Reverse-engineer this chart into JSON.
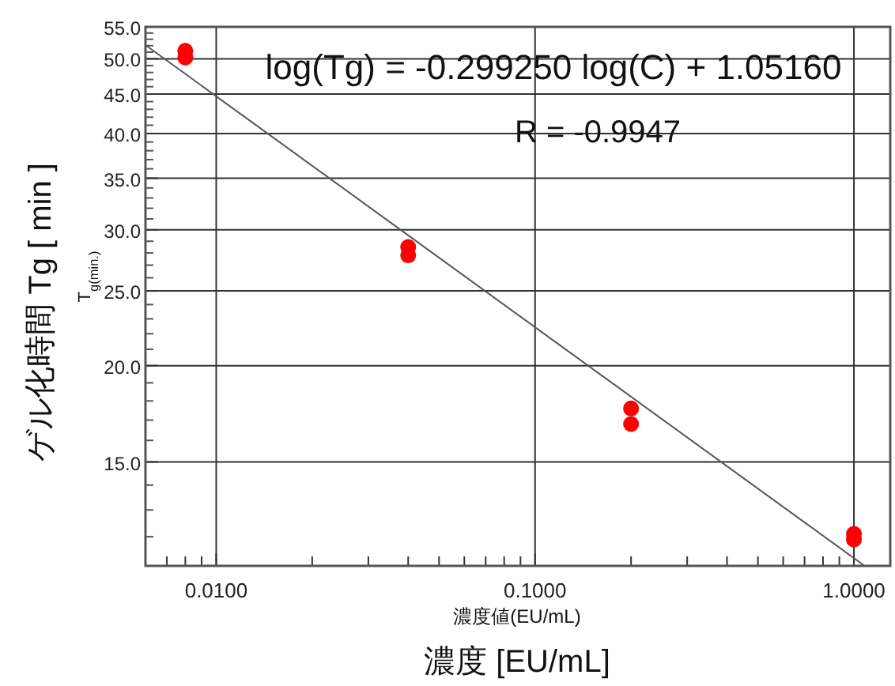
{
  "chart_data": {
    "type": "scatter",
    "xlabel": "濃度 [EU/mL]",
    "ylabel": "ゲル化時間 Tg [ min ]",
    "annotations": [
      "log(Tg) = -0.299250 log(C) + 1.05160",
      "R = -0.9947",
      "濃度値(EU/mL)",
      "T$_{g(min.)}$"
    ],
    "log": "xy",
    "grid": true,
    "marker": "circle",
    "xlim": [
      0.006,
      1.3
    ],
    "ylim": [
      11,
      55
    ],
    "xticks": [
      {
        "value": 0.007,
        "label": null
      },
      {
        "value": 0.008,
        "label": null
      },
      {
        "value": 0.009,
        "label": null
      },
      {
        "value": 0.01,
        "label": "0.0100"
      },
      {
        "value": 0.02,
        "label": null
      },
      {
        "value": 0.03,
        "label": null
      },
      {
        "value": 0.04,
        "label": null
      },
      {
        "value": 0.05,
        "label": null
      },
      {
        "value": 0.06,
        "label": null
      },
      {
        "value": 0.07,
        "label": null
      },
      {
        "value": 0.08,
        "label": null
      },
      {
        "value": 0.09,
        "label": null
      },
      {
        "value": 0.1,
        "label": "0.1000"
      },
      {
        "value": 0.2,
        "label": null
      },
      {
        "value": 0.3,
        "label": null
      },
      {
        "value": 0.4,
        "label": null
      },
      {
        "value": 0.5,
        "label": null
      },
      {
        "value": 0.6,
        "label": null
      },
      {
        "value": 0.7,
        "label": null
      },
      {
        "value": 0.8,
        "label": null
      },
      {
        "value": 0.9,
        "label": null
      },
      {
        "value": 1,
        "label": "1.0000"
      }
    ],
    "yticks": [
      {
        "value": 12,
        "label": null
      },
      {
        "value": 13,
        "label": null
      },
      {
        "value": 14,
        "label": null
      },
      {
        "value": 15,
        "label": "15.0"
      },
      {
        "value": 16,
        "label": null
      },
      {
        "value": 17,
        "label": null
      },
      {
        "value": 18,
        "label": null
      },
      {
        "value": 19,
        "label": null
      },
      {
        "value": 20,
        "label": "20.0"
      },
      {
        "value": 21,
        "label": null
      },
      {
        "value": 22,
        "label": null
      },
      {
        "value": 23,
        "label": null
      },
      {
        "value": 24,
        "label": null
      },
      {
        "value": 25,
        "label": "25.0"
      },
      {
        "value": 26,
        "label": null
      },
      {
        "value": 27,
        "label": null
      },
      {
        "value": 28,
        "label": null
      },
      {
        "value": 29,
        "label": null
      },
      {
        "value": 30,
        "label": "30.0"
      },
      {
        "value": 31,
        "label": null
      },
      {
        "value": 32,
        "label": null
      },
      {
        "value": 33,
        "label": null
      },
      {
        "value": 34,
        "label": null
      },
      {
        "value": 35,
        "label": "35.0"
      },
      {
        "value": 36,
        "label": null
      },
      {
        "value": 37,
        "label": null
      },
      {
        "value": 38,
        "label": null
      },
      {
        "value": 39,
        "label": null
      },
      {
        "value": 40,
        "label": "40.0"
      },
      {
        "value": 41,
        "label": null
      },
      {
        "value": 42,
        "label": null
      },
      {
        "value": 43,
        "label": null
      },
      {
        "value": 44,
        "label": null
      },
      {
        "value": 45,
        "label": "45.0"
      },
      {
        "value": 46,
        "label": null
      },
      {
        "value": 47,
        "label": null
      },
      {
        "value": 48,
        "label": null
      },
      {
        "value": 49,
        "label": null
      },
      {
        "value": 50,
        "label": "50.0"
      },
      {
        "value": 51,
        "label": null
      },
      {
        "value": 52,
        "label": null
      },
      {
        "value": 53,
        "label": null
      },
      {
        "value": 54,
        "label": null
      },
      {
        "value": 55,
        "label": "55.0"
      }
    ],
    "series": [
      {
        "color": "#ff0000",
        "x": [
          0.008,
          0.008,
          0.04,
          0.04,
          0.2,
          0.2,
          1,
          1
        ],
        "values": [
          51.2,
          50.2,
          28.5,
          27.8,
          17.6,
          16.8,
          12.1,
          11.9
        ]
      },
      {
        "type": "line",
        "color": "#555555",
        "marker": "none",
        "x": [
          0.006,
          1.08
        ],
        "values": [
          52.1,
          11.0
        ]
      }
    ]
  }
}
